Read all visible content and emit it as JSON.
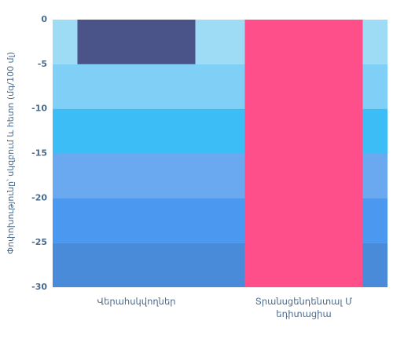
{
  "chart_data": {
    "type": "bar",
    "y_label": "Փոփոխությունը՝ սկզբում և հետո (մգ/100 մլ)",
    "categories": [
      "Վերահսկվողներ",
      "Տրանսցենդենտալ Մեդիտացիա"
    ],
    "values": [
      -5,
      -30
    ],
    "colors": [
      "#4a5488",
      "#ff4f8b"
    ],
    "band_colors": [
      "#9edcf6",
      "#7fcff6",
      "#3dbdf5",
      "#6aa9ef",
      "#4a98ef",
      "#4a8bd9"
    ],
    "ylim": [
      -30,
      0
    ],
    "yticks": [
      0,
      -5,
      -10,
      -15,
      -20,
      -25,
      -30
    ]
  }
}
